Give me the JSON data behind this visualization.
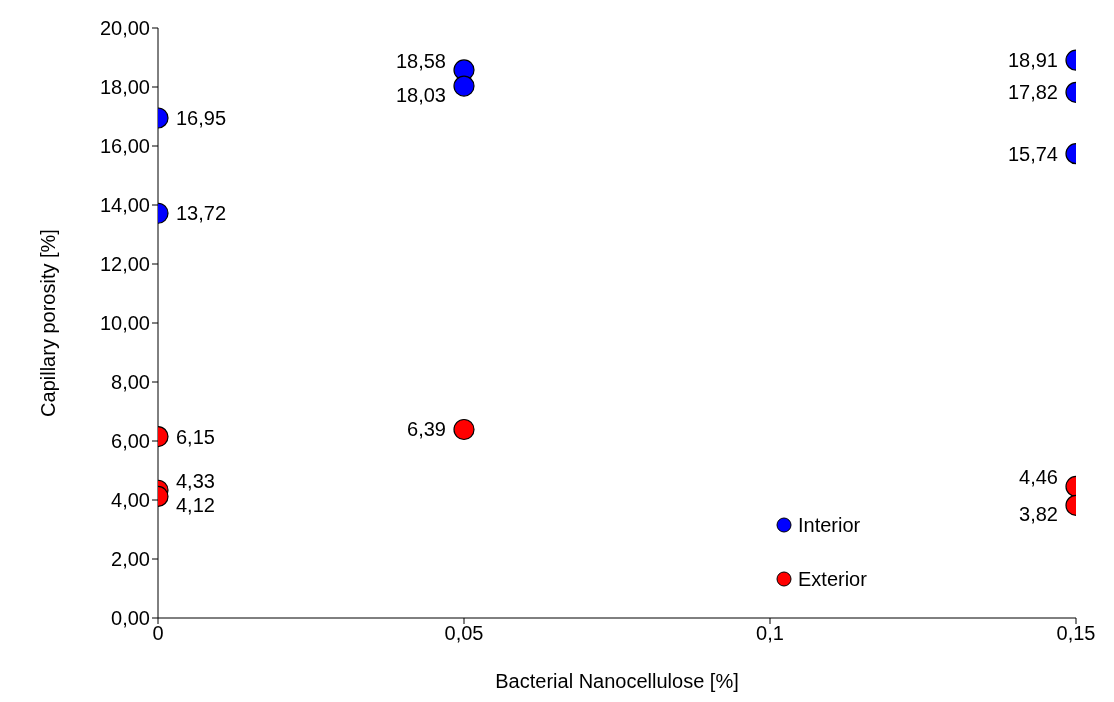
{
  "chart_data": {
    "type": "scatter",
    "xlabel": "Bacterial Nanocellulose [%]",
    "ylabel": "Capillary porosity [%]",
    "xlim": [
      0,
      0.15
    ],
    "xticks": [
      {
        "value": 0,
        "label": "0"
      },
      {
        "value": 0.05,
        "label": "0,05"
      },
      {
        "value": 0.1,
        "label": "0,1"
      },
      {
        "value": 0.15,
        "label": "0,15"
      }
    ],
    "ylim": [
      0,
      20
    ],
    "yticks": [
      {
        "value": 0,
        "label": "0,00"
      },
      {
        "value": 2,
        "label": "2,00"
      },
      {
        "value": 4,
        "label": "4,00"
      },
      {
        "value": 6,
        "label": "6,00"
      },
      {
        "value": 8,
        "label": "8,00"
      },
      {
        "value": 10,
        "label": "10,00"
      },
      {
        "value": 12,
        "label": "12,00"
      },
      {
        "value": 14,
        "label": "14,00"
      },
      {
        "value": 16,
        "label": "16,00"
      },
      {
        "value": 18,
        "label": "18,00"
      },
      {
        "value": 20,
        "label": "20,00"
      }
    ],
    "grid": false,
    "legend": "bottom right",
    "marker": "circle",
    "series": [
      {
        "name": "Interior",
        "color": "#0000ff",
        "x": [
          0,
          0,
          0.05,
          0.05,
          0.15,
          0.15,
          0.15
        ],
        "values": [
          16.95,
          13.72,
          18.58,
          18.03,
          18.91,
          17.82,
          15.74
        ],
        "value_labels": [
          "16,95",
          "13,72",
          "18,58",
          "18,03",
          "18,91",
          "17,82",
          "15,74"
        ]
      },
      {
        "name": "Exterior",
        "color": "#ff0000",
        "x": [
          0,
          0,
          0,
          0.05,
          0.15,
          0.15
        ],
        "values": [
          6.15,
          4.33,
          4.12,
          6.39,
          4.46,
          3.82
        ],
        "value_labels": [
          "6,15",
          "4,33",
          "4,12",
          "6,39",
          "4,46",
          "3,82"
        ]
      }
    ]
  }
}
